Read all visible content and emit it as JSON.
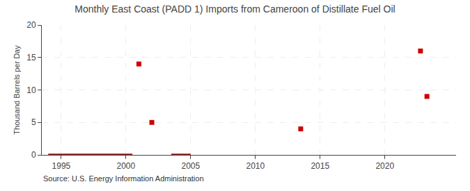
{
  "chart_data": {
    "type": "scatter",
    "title": "Monthly East Coast (PADD 1) Imports from Cameroon of Distillate Fuel Oil",
    "ylabel": "Thousand Barrels per Day",
    "annotations": [
      "Source: U.S. Energy Information Administration"
    ],
    "xlim": [
      1993.5,
      2025.5
    ],
    "ylim": [
      0,
      20
    ],
    "xticks": [
      1995,
      2000,
      2005,
      2010,
      2015,
      2020
    ],
    "yticks": [
      0,
      5,
      10,
      15,
      20
    ],
    "grid": true,
    "series": [
      {
        "type": "line",
        "color": "#8b1a1a",
        "x": [
          1994.0,
          2000.5
        ],
        "values": [
          0,
          0
        ]
      },
      {
        "type": "line",
        "color": "#8b1a1a",
        "x": [
          2003.5,
          2005.0
        ],
        "values": [
          0,
          0
        ]
      },
      {
        "type": "scatter",
        "marker": "square",
        "color": "#cc0000",
        "x": [
          2001.0,
          2002.0,
          2013.5,
          2022.75,
          2023.25
        ],
        "values": [
          14.0,
          5.0,
          4.0,
          16.0,
          9.0
        ]
      }
    ]
  }
}
